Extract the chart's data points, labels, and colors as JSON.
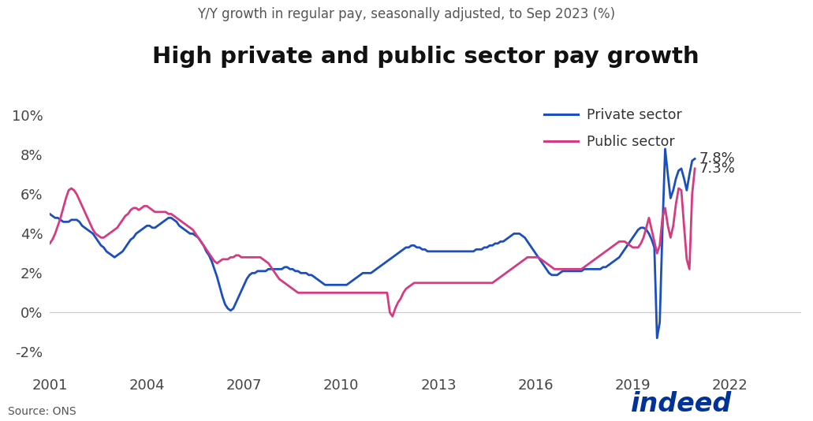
{
  "title": "High private and public sector pay growth",
  "subtitle": "Y/Y growth in regular pay, seasonally adjusted, to Sep 2023 (%)",
  "source": "Source: ONS",
  "private_color": "#1B4FBF",
  "public_color": "#D63B82",
  "ylim": [
    -0.03,
    0.11
  ],
  "yticks": [
    -0.02,
    0.0,
    0.02,
    0.04,
    0.06,
    0.08,
    0.1
  ],
  "ytick_labels": [
    "-2%",
    "0%",
    "2%",
    "4%",
    "6%",
    "8%",
    "10%"
  ],
  "annotation_private": "7.8%",
  "annotation_public": "7.3%",
  "legend_private": "Private sector",
  "legend_public": "Public sector",
  "background_color": "#ffffff",
  "xtick_years": [
    2001,
    2004,
    2007,
    2010,
    2013,
    2016,
    2019,
    2022
  ],
  "xlim_start": 2001.0,
  "xlim_end": 2024.2,
  "private_data": [
    0.05,
    0.049,
    0.048,
    0.048,
    0.047,
    0.046,
    0.046,
    0.046,
    0.047,
    0.047,
    0.047,
    0.046,
    0.044,
    0.043,
    0.042,
    0.041,
    0.04,
    0.038,
    0.036,
    0.034,
    0.033,
    0.031,
    0.03,
    0.029,
    0.028,
    0.029,
    0.03,
    0.031,
    0.033,
    0.035,
    0.037,
    0.038,
    0.04,
    0.041,
    0.042,
    0.043,
    0.044,
    0.044,
    0.043,
    0.043,
    0.044,
    0.045,
    0.046,
    0.047,
    0.048,
    0.048,
    0.047,
    0.046,
    0.044,
    0.043,
    0.042,
    0.041,
    0.04,
    0.04,
    0.039,
    0.038,
    0.036,
    0.034,
    0.031,
    0.029,
    0.026,
    0.022,
    0.018,
    0.013,
    0.008,
    0.004,
    0.002,
    0.001,
    0.002,
    0.005,
    0.008,
    0.011,
    0.014,
    0.017,
    0.019,
    0.02,
    0.02,
    0.021,
    0.021,
    0.021,
    0.021,
    0.022,
    0.022,
    0.022,
    0.022,
    0.022,
    0.022,
    0.023,
    0.023,
    0.022,
    0.022,
    0.021,
    0.021,
    0.02,
    0.02,
    0.02,
    0.019,
    0.019,
    0.018,
    0.017,
    0.016,
    0.015,
    0.014,
    0.014,
    0.014,
    0.014,
    0.014,
    0.014,
    0.014,
    0.014,
    0.014,
    0.015,
    0.016,
    0.017,
    0.018,
    0.019,
    0.02,
    0.02,
    0.02,
    0.02,
    0.021,
    0.022,
    0.023,
    0.024,
    0.025,
    0.026,
    0.027,
    0.028,
    0.029,
    0.03,
    0.031,
    0.032,
    0.033,
    0.033,
    0.034,
    0.034,
    0.033,
    0.033,
    0.032,
    0.032,
    0.031,
    0.031,
    0.031,
    0.031,
    0.031,
    0.031,
    0.031,
    0.031,
    0.031,
    0.031,
    0.031,
    0.031,
    0.031,
    0.031,
    0.031,
    0.031,
    0.031,
    0.031,
    0.032,
    0.032,
    0.032,
    0.033,
    0.033,
    0.034,
    0.034,
    0.035,
    0.035,
    0.036,
    0.036,
    0.037,
    0.038,
    0.039,
    0.04,
    0.04,
    0.04,
    0.039,
    0.038,
    0.036,
    0.034,
    0.032,
    0.03,
    0.028,
    0.026,
    0.024,
    0.022,
    0.02,
    0.019,
    0.019,
    0.019,
    0.02,
    0.021,
    0.021,
    0.021,
    0.021,
    0.021,
    0.021,
    0.021,
    0.021,
    0.022,
    0.022,
    0.022,
    0.022,
    0.022,
    0.022,
    0.022,
    0.023,
    0.023,
    0.024,
    0.025,
    0.026,
    0.027,
    0.028,
    0.03,
    0.032,
    0.034,
    0.036,
    0.038,
    0.04,
    0.042,
    0.043,
    0.043,
    0.042,
    0.04,
    0.037,
    0.033,
    -0.013,
    -0.005,
    0.042,
    0.083,
    0.07,
    0.058,
    0.062,
    0.068,
    0.072,
    0.073,
    0.068,
    0.062,
    0.07,
    0.077,
    0.078
  ],
  "public_data": [
    0.035,
    0.037,
    0.04,
    0.044,
    0.048,
    0.053,
    0.058,
    0.062,
    0.063,
    0.062,
    0.06,
    0.057,
    0.054,
    0.051,
    0.048,
    0.045,
    0.042,
    0.04,
    0.039,
    0.038,
    0.038,
    0.039,
    0.04,
    0.041,
    0.042,
    0.043,
    0.045,
    0.047,
    0.049,
    0.05,
    0.052,
    0.053,
    0.053,
    0.052,
    0.053,
    0.054,
    0.054,
    0.053,
    0.052,
    0.051,
    0.051,
    0.051,
    0.051,
    0.051,
    0.05,
    0.05,
    0.049,
    0.048,
    0.047,
    0.046,
    0.045,
    0.044,
    0.043,
    0.042,
    0.04,
    0.038,
    0.036,
    0.034,
    0.032,
    0.03,
    0.028,
    0.026,
    0.025,
    0.026,
    0.027,
    0.027,
    0.027,
    0.028,
    0.028,
    0.029,
    0.029,
    0.028,
    0.028,
    0.028,
    0.028,
    0.028,
    0.028,
    0.028,
    0.028,
    0.027,
    0.026,
    0.025,
    0.023,
    0.021,
    0.019,
    0.017,
    0.016,
    0.015,
    0.014,
    0.013,
    0.012,
    0.011,
    0.01,
    0.01,
    0.01,
    0.01,
    0.01,
    0.01,
    0.01,
    0.01,
    0.01,
    0.01,
    0.01,
    0.01,
    0.01,
    0.01,
    0.01,
    0.01,
    0.01,
    0.01,
    0.01,
    0.01,
    0.01,
    0.01,
    0.01,
    0.01,
    0.01,
    0.01,
    0.01,
    0.01,
    0.01,
    0.01,
    0.01,
    0.01,
    0.01,
    0.01,
    0.0,
    -0.002,
    0.002,
    0.005,
    0.007,
    0.01,
    0.012,
    0.013,
    0.014,
    0.015,
    0.015,
    0.015,
    0.015,
    0.015,
    0.015,
    0.015,
    0.015,
    0.015,
    0.015,
    0.015,
    0.015,
    0.015,
    0.015,
    0.015,
    0.015,
    0.015,
    0.015,
    0.015,
    0.015,
    0.015,
    0.015,
    0.015,
    0.015,
    0.015,
    0.015,
    0.015,
    0.015,
    0.015,
    0.015,
    0.016,
    0.017,
    0.018,
    0.019,
    0.02,
    0.021,
    0.022,
    0.023,
    0.024,
    0.025,
    0.026,
    0.027,
    0.028,
    0.028,
    0.028,
    0.028,
    0.028,
    0.027,
    0.026,
    0.025,
    0.024,
    0.023,
    0.022,
    0.022,
    0.022,
    0.022,
    0.022,
    0.022,
    0.022,
    0.022,
    0.022,
    0.022,
    0.022,
    0.023,
    0.024,
    0.025,
    0.026,
    0.027,
    0.028,
    0.029,
    0.03,
    0.031,
    0.032,
    0.033,
    0.034,
    0.035,
    0.036,
    0.036,
    0.036,
    0.035,
    0.034,
    0.033,
    0.033,
    0.033,
    0.035,
    0.038,
    0.043,
    0.048,
    0.042,
    0.036,
    0.03,
    0.034,
    0.048,
    0.053,
    0.044,
    0.038,
    0.044,
    0.055,
    0.063,
    0.062,
    0.044,
    0.027,
    0.022,
    0.06,
    0.073
  ]
}
